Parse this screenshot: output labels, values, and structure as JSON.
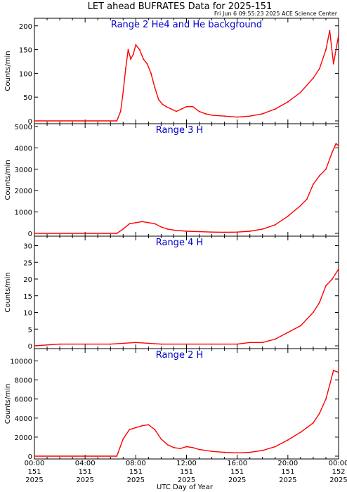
{
  "figure": {
    "title": "LET ahead BUFRATES Data for 2025-151",
    "subtitle": "Fri Jun  6 09:55:23 2025 ACE Science Center",
    "xlabel": "UTC Day of Year",
    "series_color": "#ff0000",
    "panel_title_color": "#0000cc"
  },
  "chart_data": [
    {
      "type": "line",
      "title": "Range 2 He4 and He background",
      "ylabel": "Counts/min",
      "ylim": [
        0,
        210
      ],
      "yticks": [
        0,
        50,
        100,
        150,
        200
      ],
      "x_unit": "hours UTC on day 151",
      "xlim": [
        0,
        24
      ],
      "grid": false,
      "series": [
        {
          "x": [
            0,
            4,
            6.5,
            6.8,
            7.0,
            7.2,
            7.4,
            7.6,
            7.8,
            8.0,
            8.3,
            8.6,
            8.9,
            9.2,
            9.5,
            9.8,
            10.1,
            10.4,
            10.8,
            11.2,
            11.6,
            12.0,
            12.5,
            13.0,
            13.5,
            14.0,
            15.0,
            16.0,
            17.0,
            18.0,
            19.0,
            20.0,
            21.0,
            22.0,
            22.5,
            23.0,
            23.3,
            23.6,
            24.0
          ],
          "y": [
            0,
            0,
            0,
            20,
            60,
            110,
            150,
            130,
            140,
            160,
            150,
            130,
            120,
            100,
            70,
            45,
            35,
            30,
            25,
            20,
            25,
            30,
            30,
            20,
            15,
            12,
            10,
            8,
            10,
            15,
            25,
            40,
            60,
            90,
            110,
            150,
            190,
            120,
            180
          ]
        }
      ]
    },
    {
      "type": "line",
      "title": "Range 3 H",
      "ylabel": "Counts/min",
      "ylim": [
        0,
        5000
      ],
      "yticks": [
        0,
        1000,
        2000,
        3000,
        4000,
        5000
      ],
      "x_unit": "hours UTC on day 151",
      "xlim": [
        0,
        24
      ],
      "grid": false,
      "series": [
        {
          "x": [
            0,
            6.5,
            7.0,
            7.5,
            8.0,
            8.5,
            9.0,
            9.5,
            10.0,
            10.5,
            11.0,
            12.0,
            13.0,
            14.0,
            15.0,
            16.0,
            17.0,
            18.0,
            19.0,
            20.0,
            21.0,
            21.5,
            22.0,
            22.5,
            23.0,
            23.5,
            23.8,
            24.0
          ],
          "y": [
            0,
            0,
            200,
            450,
            500,
            550,
            500,
            450,
            300,
            200,
            150,
            100,
            80,
            60,
            50,
            60,
            100,
            200,
            400,
            800,
            1300,
            1600,
            2300,
            2700,
            3000,
            3800,
            4200,
            4100
          ]
        }
      ]
    },
    {
      "type": "line",
      "title": "Range 4 H",
      "ylabel": "Counts/min",
      "ylim": [
        0,
        32
      ],
      "yticks": [
        0,
        5,
        10,
        15,
        20,
        25,
        30
      ],
      "x_unit": "hours UTC on day 151",
      "xlim": [
        0,
        24
      ],
      "grid": false,
      "series": [
        {
          "x": [
            0,
            2,
            4,
            6,
            8,
            10,
            12,
            14,
            16,
            17,
            18,
            19,
            20,
            21,
            22,
            22.5,
            23,
            23.5,
            24
          ],
          "y": [
            0,
            0.5,
            0.5,
            0.5,
            1,
            0.5,
            0.5,
            0.5,
            0.5,
            1,
            1,
            2,
            4,
            6,
            10,
            13,
            18,
            20,
            23
          ]
        }
      ]
    },
    {
      "type": "line",
      "title": "Range 2 H",
      "ylabel": "Counts/min",
      "ylim": [
        0,
        11000
      ],
      "yticks": [
        0,
        2000,
        4000,
        6000,
        8000,
        10000
      ],
      "x_unit": "hours UTC on day 151",
      "xlim": [
        0,
        24
      ],
      "grid": false,
      "series": [
        {
          "x": [
            0,
            4,
            6.5,
            7.0,
            7.5,
            8.0,
            8.5,
            9.0,
            9.5,
            10.0,
            10.5,
            11.0,
            11.5,
            12.0,
            12.5,
            13.0,
            14.0,
            15.0,
            16.0,
            17.0,
            18.0,
            19.0,
            20.0,
            21.0,
            21.5,
            22.0,
            22.5,
            23.0,
            23.3,
            23.6,
            24.0
          ],
          "y": [
            0,
            0,
            0,
            1800,
            2800,
            3000,
            3200,
            3300,
            2800,
            1800,
            1200,
            900,
            800,
            1000,
            900,
            700,
            500,
            400,
            350,
            400,
            600,
            1000,
            1700,
            2500,
            3000,
            3500,
            4500,
            6000,
            7500,
            9000,
            8800
          ]
        }
      ]
    }
  ],
  "x_axis_ticks": [
    {
      "time": "00:00",
      "doy": "151",
      "year": "2025"
    },
    {
      "time": "04:00",
      "doy": "151",
      "year": "2025"
    },
    {
      "time": "08:00",
      "doy": "151",
      "year": "2025"
    },
    {
      "time": "12:00",
      "doy": "151",
      "year": "2025"
    },
    {
      "time": "16:00",
      "doy": "151",
      "year": "2025"
    },
    {
      "time": "20:00",
      "doy": "151",
      "year": "2025"
    },
    {
      "time": "00:00",
      "doy": "152",
      "year": "2025"
    }
  ]
}
